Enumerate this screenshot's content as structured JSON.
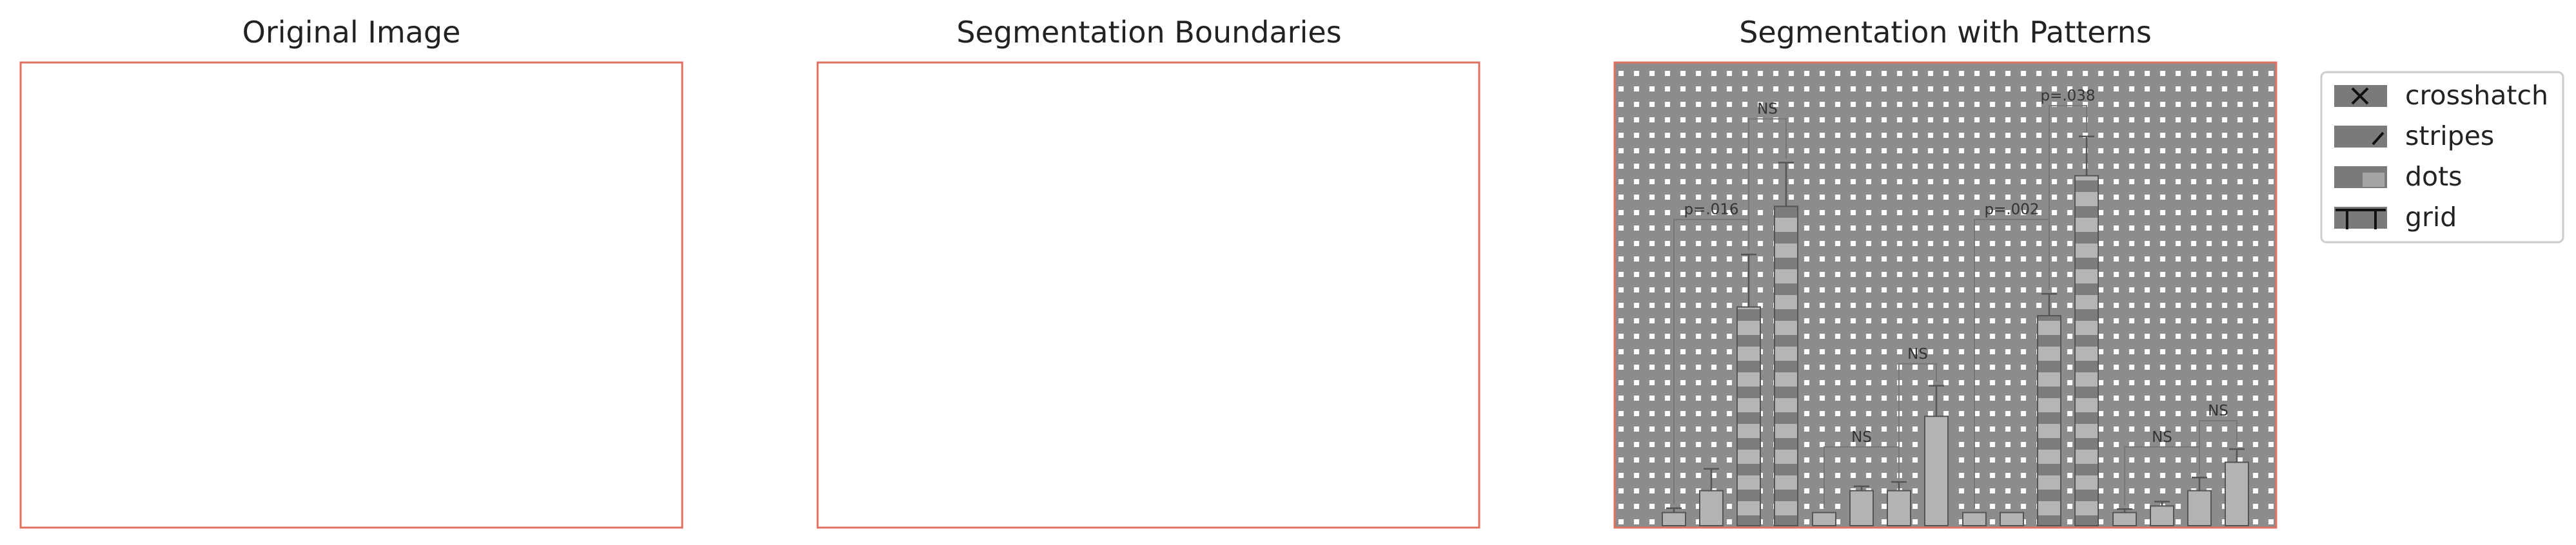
{
  "panels": {
    "original": {
      "title": "Original Image"
    },
    "boundaries": {
      "title": "Segmentation Boundaries"
    },
    "patterns": {
      "title": "Segmentation with Patterns"
    }
  },
  "legend": {
    "items": [
      {
        "label": "crosshatch",
        "icon": "crosshatch-swatch"
      },
      {
        "label": "stripes",
        "icon": "stripes-swatch"
      },
      {
        "label": "dots",
        "icon": "dots-swatch"
      },
      {
        "label": "grid",
        "icon": "grid-swatch"
      }
    ]
  },
  "colors": {
    "bar": "#b3b3b3",
    "bar_dark": "#6e6e6e",
    "frame": "#e07060",
    "segment_boundary": "#ffee00",
    "pattern_fill": "#8c8c8c"
  },
  "chart_data": {
    "type": "bar",
    "ylim": [
      0,
      100
    ],
    "groups": [
      {
        "values": [
          3,
          8,
          50,
          73
        ],
        "errors": [
          1,
          5,
          12,
          10
        ]
      },
      {
        "values": [
          3,
          8,
          8,
          25
        ],
        "errors": [
          0,
          1,
          2,
          7
        ]
      },
      {
        "values": [
          3,
          3,
          48,
          80
        ],
        "errors": [
          0,
          0,
          5,
          9
        ]
      },
      {
        "values": [
          3,
          4.5,
          8,
          14.5
        ],
        "errors": [
          0.8,
          1,
          3,
          3
        ]
      }
    ],
    "annotations": [
      {
        "text": "p=.016",
        "group": 0,
        "from_bar": 0,
        "to_bar": 2,
        "y": 70
      },
      {
        "text": "NS",
        "group": 0,
        "from_bar": 2,
        "to_bar": 3,
        "y": 93
      },
      {
        "text": "NS",
        "group": 1,
        "from_bar": 0,
        "to_bar": 2,
        "y": 18
      },
      {
        "text": "NS",
        "group": 1,
        "from_bar": 2,
        "to_bar": 3,
        "y": 37
      },
      {
        "text": "p=.002",
        "group": 2,
        "from_bar": 0,
        "to_bar": 2,
        "y": 70
      },
      {
        "text": "p=.038",
        "group": 2,
        "from_bar": 2,
        "to_bar": 3,
        "y": 96
      },
      {
        "text": "NS",
        "group": 3,
        "from_bar": 0,
        "to_bar": 2,
        "y": 18
      },
      {
        "text": "NS",
        "group": 3,
        "from_bar": 2,
        "to_bar": 3,
        "y": 24
      }
    ]
  }
}
